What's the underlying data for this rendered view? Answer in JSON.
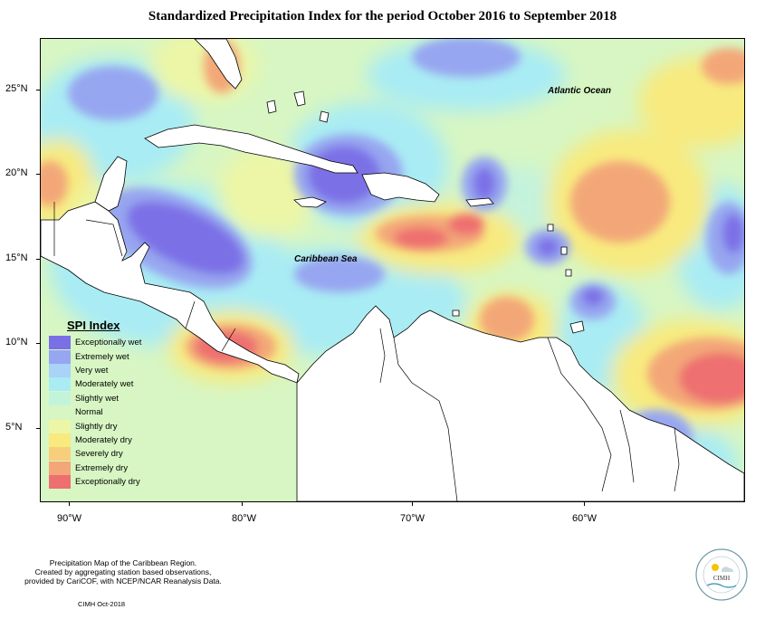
{
  "title": "Standardized Precipitation Index for the period October 2016 to September 2018",
  "map": {
    "lat_ticks": [
      "25°N",
      "20°N",
      "15°N",
      "10°N",
      "5°N"
    ],
    "lon_ticks": [
      "90°W",
      "80°W",
      "70°W",
      "60°W"
    ],
    "labels": {
      "atlantic": "Atlantic Ocean",
      "caribbean": "Caribbean Sea"
    }
  },
  "legend": {
    "title": "SPI Index",
    "items": [
      {
        "label": "Exceptionally wet",
        "color": "#7b6fe6"
      },
      {
        "label": "Extremely wet",
        "color": "#97a6f0"
      },
      {
        "label": "Very wet",
        "color": "#a9d3f7"
      },
      {
        "label": "Moderately wet",
        "color": "#a9ecf4"
      },
      {
        "label": "Slightly wet",
        "color": "#c4f3dc"
      },
      {
        "label": "Normal",
        "color": "#d7f6c3"
      },
      {
        "label": "Slightly dry",
        "color": "#ecf6a6"
      },
      {
        "label": "Moderately dry",
        "color": "#f8ea7e"
      },
      {
        "label": "Severely dry",
        "color": "#f7cf7c"
      },
      {
        "label": "Extremely dry",
        "color": "#f3a778"
      },
      {
        "label": "Exceptionally dry",
        "color": "#ee6f6f"
      }
    ]
  },
  "caption": {
    "line1": "Precipitation Map of the Caribbean Region.",
    "line2": "Created by aggregating station based observations,",
    "line3": "provided by CariCOF, with NCEP/NCAR Reanalysis Data.",
    "credit": "CIMH  Oct-2018"
  },
  "logo": {
    "abbr": "CIMH"
  }
}
